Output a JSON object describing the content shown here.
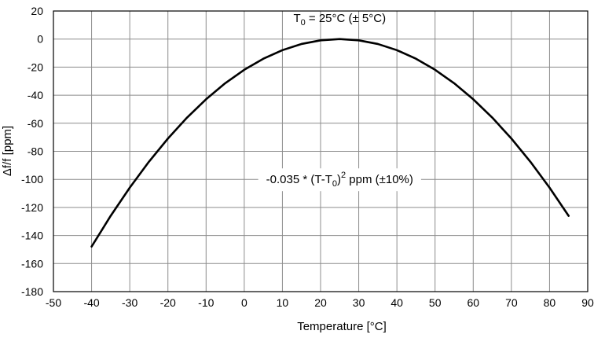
{
  "chart_data": {
    "type": "line",
    "xlabel": "Temperature [°C]",
    "ylabel": "Δf/f [ppm]",
    "xlim": [
      -50,
      90
    ],
    "ylim": [
      -180,
      20
    ],
    "x_ticks": [
      -50,
      -40,
      -30,
      -20,
      -10,
      0,
      10,
      20,
      30,
      40,
      50,
      60,
      70,
      80,
      90
    ],
    "y_ticks": [
      20,
      0,
      -20,
      -40,
      -60,
      -80,
      -100,
      -120,
      -140,
      -160,
      -180
    ],
    "grid": true,
    "series": [
      {
        "x": [
          -40,
          -35,
          -30,
          -25,
          -20,
          -15,
          -10,
          -5,
          0,
          5,
          10,
          15,
          20,
          25,
          30,
          35,
          40,
          45,
          50,
          55,
          60,
          65,
          70,
          75,
          80,
          85
        ],
        "y": [
          -147.9,
          -126.0,
          -105.9,
          -87.5,
          -70.9,
          -56.0,
          -42.9,
          -31.5,
          -21.9,
          -14.0,
          -7.9,
          -3.5,
          -0.9,
          0.0,
          -0.9,
          -3.5,
          -7.9,
          -14.0,
          -21.9,
          -31.5,
          -42.9,
          -56.0,
          -70.9,
          -87.5,
          -105.9,
          -126.0
        ]
      }
    ],
    "annotations": {
      "t0": {
        "prefix": "T",
        "sub": "0",
        "suffix": " = 25°C (± 5°C)",
        "x": 25,
        "y": 10
      },
      "formula": {
        "part1": "-0.035 * (T-T",
        "sub": "0",
        "part2": ")",
        "sup": "2",
        "part3": " ppm (±10%)",
        "x": 25,
        "y": -100
      }
    }
  }
}
